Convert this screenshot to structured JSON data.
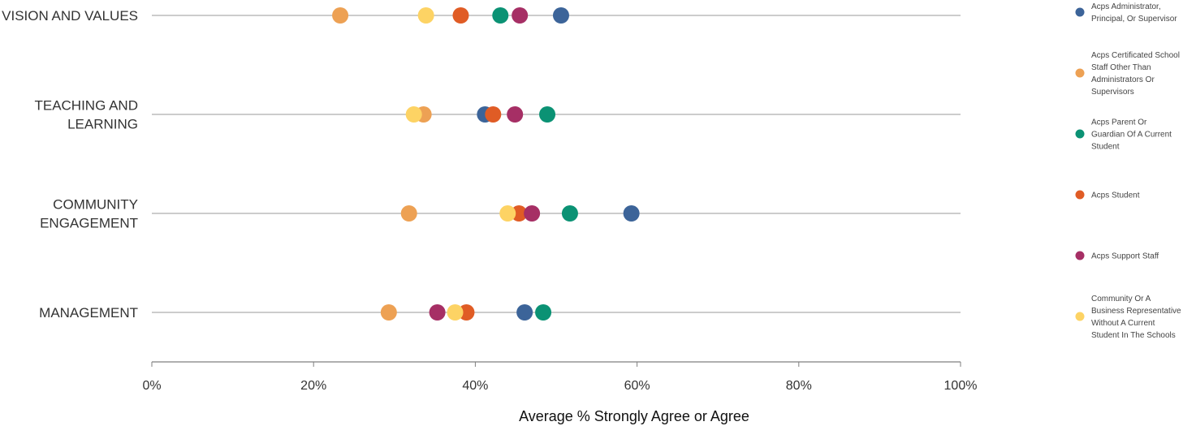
{
  "chart_data": {
    "type": "scatter",
    "title": "",
    "xlabel": "Average % Strongly Agree or Agree",
    "ylabel": "",
    "xlim": [
      0,
      100
    ],
    "x_ticks": [
      "0%",
      "20%",
      "40%",
      "60%",
      "80%",
      "100%"
    ],
    "x_tick_values": [
      0,
      20,
      40,
      60,
      80,
      100
    ],
    "grid": false,
    "legend_position": "right",
    "categories": [
      [
        "VISION AND VALUES"
      ],
      [
        "TEACHING AND",
        "LEARNING"
      ],
      [
        "COMMUNITY",
        "ENGAGEMENT"
      ],
      [
        "MANAGEMENT"
      ]
    ],
    "series": [
      {
        "name": [
          "Acps Administrator,",
          "Principal, Or Supervisor"
        ],
        "color": "#3c6499",
        "values": [
          50.6,
          41.2,
          59.3,
          46.1
        ]
      },
      {
        "name": [
          "Acps Certificated School",
          "Staff Other Than",
          "Administrators Or",
          "Supervisors"
        ],
        "color": "#eda154",
        "values": [
          23.3,
          33.6,
          31.8,
          29.3
        ]
      },
      {
        "name": [
          "Acps Parent Or",
          "Guardian Of A Current",
          "Student"
        ],
        "color": "#0b9274",
        "values": [
          43.1,
          48.9,
          51.7,
          48.4
        ]
      },
      {
        "name": [
          "Acps Student"
        ],
        "color": "#e05c25",
        "values": [
          38.2,
          42.2,
          45.4,
          38.9
        ]
      },
      {
        "name": [
          "Acps Support Staff"
        ],
        "color": "#a62f65",
        "values": [
          45.5,
          44.9,
          47.0,
          35.3
        ]
      },
      {
        "name": [
          "Community Or A",
          "Business Representative",
          "Without A Current",
          "Student In The Schools"
        ],
        "color": "#fdd364",
        "values": [
          33.9,
          32.4,
          44.0,
          37.5
        ]
      }
    ]
  }
}
